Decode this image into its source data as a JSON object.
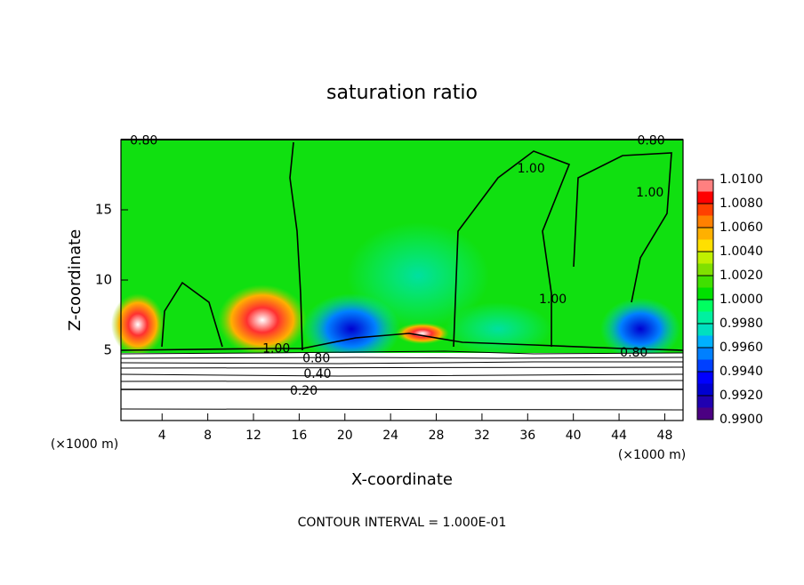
{
  "chart_data": {
    "type": "contour",
    "title": "saturation ratio",
    "x_label": "X-coordinate",
    "y_label": "Z-coordinate",
    "x_unit": "(×1000 m)",
    "y_unit": "(×1000 m)",
    "annotation": "CONTOUR INTERVAL = 1.000E-01",
    "xlim": [
      0.4,
      49.6
    ],
    "ylim": [
      0,
      20
    ],
    "xticks": [
      4,
      8,
      12,
      16,
      20,
      24,
      28,
      32,
      36,
      40,
      44,
      48
    ],
    "yticks": [
      5,
      10,
      15
    ],
    "contour_labels": [
      {
        "value": 1.0,
        "label": "1.00",
        "x": 14,
        "y": 5.1
      },
      {
        "value": 0.8,
        "label": "0.80",
        "x": 17.5,
        "y": 4.4
      },
      {
        "value": 0.4,
        "label": "0.40",
        "x": 17.6,
        "y": 3.3
      },
      {
        "value": 0.2,
        "label": "0.20",
        "x": 16.4,
        "y": 2.1
      },
      {
        "value": 0.8,
        "label": "0.80",
        "x": 2.4,
        "y": 19.9
      },
      {
        "value": 0.8,
        "label": "0.80",
        "x": 46.8,
        "y": 19.9
      },
      {
        "value": 1.0,
        "label": "1.00",
        "x": 36.3,
        "y": 17.9
      },
      {
        "value": 1.0,
        "label": "1.00",
        "x": 46.7,
        "y": 16.2
      },
      {
        "value": 1.0,
        "label": "1.00",
        "x": 38.2,
        "y": 8.6
      },
      {
        "value": 0.8,
        "label": "0.80",
        "x": 45.3,
        "y": 4.8
      }
    ],
    "colorbar": {
      "lim": [
        0.99,
        1.01
      ],
      "ticks": [
        {
          "value": 0.99,
          "label": "0.9900"
        },
        {
          "value": 0.992,
          "label": "0.9920"
        },
        {
          "value": 0.994,
          "label": "0.9940"
        },
        {
          "value": 0.996,
          "label": "0.9960"
        },
        {
          "value": 0.998,
          "label": "0.9980"
        },
        {
          "value": 1.0,
          "label": "1.0000"
        },
        {
          "value": 1.002,
          "label": "1.0020"
        },
        {
          "value": 1.004,
          "label": "1.0040"
        },
        {
          "value": 1.006,
          "label": "1.0060"
        },
        {
          "value": 1.008,
          "label": "1.0080"
        },
        {
          "value": 1.01,
          "label": "1.0100"
        }
      ],
      "levels": [
        0.99,
        0.991,
        0.992,
        0.993,
        0.994,
        0.995,
        0.996,
        0.997,
        0.998,
        0.999,
        1.0,
        1.001,
        1.002,
        1.003,
        1.004,
        1.005,
        1.006,
        1.007,
        1.008,
        1.009,
        1.01
      ],
      "colors": [
        "#4b0082",
        "#2000b0",
        "#0000d0",
        "#0000ff",
        "#0040ff",
        "#0080ff",
        "#00b0ff",
        "#00e0c0",
        "#00f0a0",
        "#00ff60",
        "#00e000",
        "#40e000",
        "#80e000",
        "#c0f000",
        "#ffe000",
        "#ffb000",
        "#ff8000",
        "#ff4000",
        "#ff0000",
        "#ff8080"
      ]
    }
  }
}
